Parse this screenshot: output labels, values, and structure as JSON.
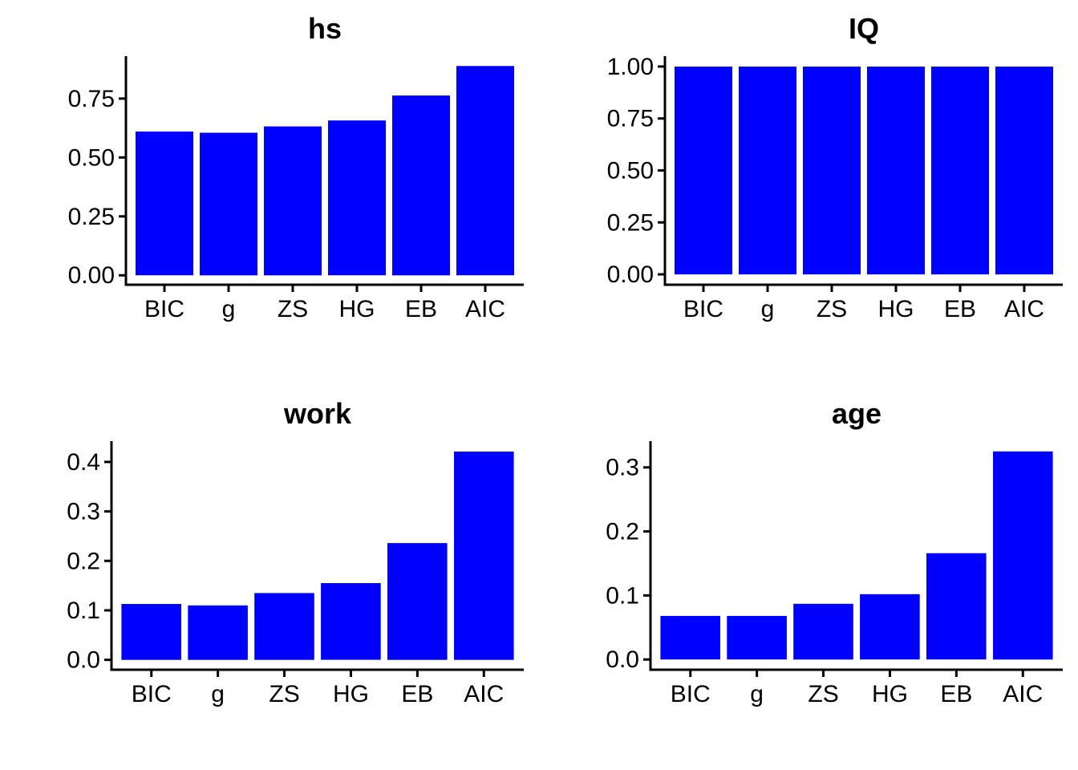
{
  "chart_data": [
    {
      "type": "bar",
      "title": "hs",
      "categories": [
        "BIC",
        "g",
        "ZS",
        "HG",
        "EB",
        "AIC"
      ],
      "values": [
        0.61,
        0.605,
        0.632,
        0.657,
        0.763,
        0.888
      ],
      "yticks": [
        0,
        0.25,
        0.5,
        0.75
      ],
      "ytick_labels": [
        "0.00",
        "0.25",
        "0.50",
        "0.75"
      ],
      "xlabel": "",
      "ylabel": "",
      "ylim": [
        -0.04,
        0.93
      ],
      "bar_color": "#0000FF",
      "grid": false
    },
    {
      "type": "bar",
      "title": "IQ",
      "categories": [
        "BIC",
        "g",
        "ZS",
        "HG",
        "EB",
        "AIC"
      ],
      "values": [
        1.0,
        1.0,
        1.0,
        1.0,
        1.0,
        1.0
      ],
      "yticks": [
        0,
        0.25,
        0.5,
        0.75,
        1.0
      ],
      "ytick_labels": [
        "0.00",
        "0.25",
        "0.50",
        "0.75",
        "1.00"
      ],
      "xlabel": "",
      "ylabel": "",
      "ylim": [
        -0.05,
        1.05
      ],
      "bar_color": "#0000FF",
      "grid": false
    },
    {
      "type": "bar",
      "title": "work",
      "categories": [
        "BIC",
        "g",
        "ZS",
        "HG",
        "EB",
        "AIC"
      ],
      "values": [
        0.113,
        0.11,
        0.135,
        0.155,
        0.236,
        0.421
      ],
      "yticks": [
        0,
        0.1,
        0.2,
        0.3,
        0.4
      ],
      "ytick_labels": [
        "0.0",
        "0.1",
        "0.2",
        "0.3",
        "0.4"
      ],
      "xlabel": "",
      "ylabel": "",
      "ylim": [
        -0.02,
        0.442
      ],
      "bar_color": "#0000FF",
      "grid": false
    },
    {
      "type": "bar",
      "title": "age",
      "categories": [
        "BIC",
        "g",
        "ZS",
        "HG",
        "EB",
        "AIC"
      ],
      "values": [
        0.068,
        0.068,
        0.087,
        0.102,
        0.166,
        0.325
      ],
      "yticks": [
        0,
        0.1,
        0.2,
        0.3
      ],
      "ytick_labels": [
        "0.0",
        "0.1",
        "0.2",
        "0.3"
      ],
      "xlabel": "",
      "ylabel": "",
      "ylim": [
        -0.016,
        0.341
      ],
      "bar_color": "#0000FF",
      "grid": false
    }
  ]
}
